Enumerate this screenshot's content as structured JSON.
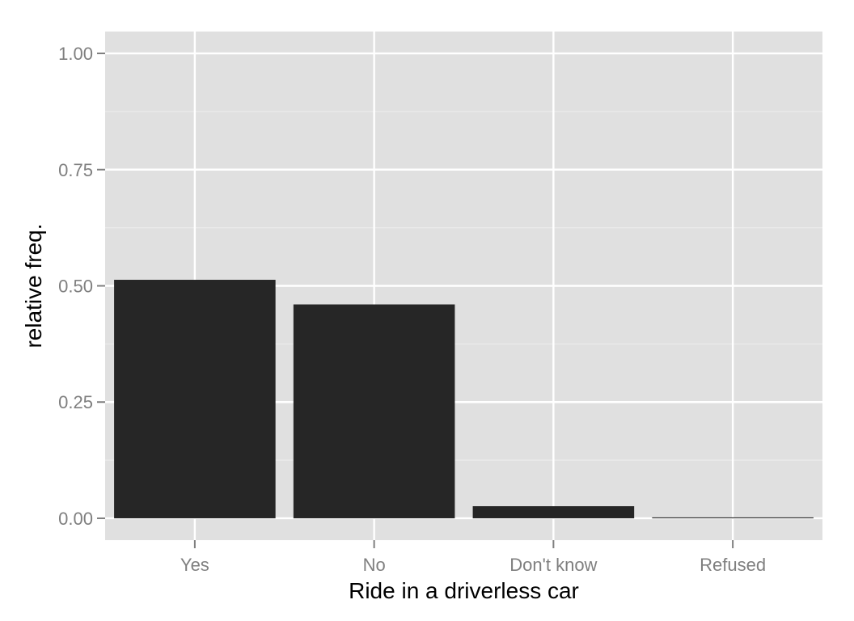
{
  "chart_data": {
    "type": "bar",
    "title": "",
    "xlabel": "Ride in a driverless car",
    "ylabel": "relative freq.",
    "categories": [
      "Yes",
      "No",
      "Don't know",
      "Refused"
    ],
    "values": [
      0.513,
      0.46,
      0.026,
      0.002
    ],
    "ylim": [
      -0.047,
      1.047
    ],
    "yticks": [
      0,
      0.25,
      0.5,
      0.75,
      1
    ],
    "ytick_labels": [
      "0.00",
      "0.25",
      "0.50",
      "0.75",
      "1.00"
    ],
    "grid": true,
    "legend": "none",
    "colors": {
      "panel_background": "#e0e0e0",
      "major_grid": "#ffffff",
      "minor_grid": "#ebebeb",
      "bar_fill": "#262626",
      "tick_mark": "#7f7f7f",
      "tick_label": "#7f7f7f",
      "axis_title": "#000000"
    }
  }
}
